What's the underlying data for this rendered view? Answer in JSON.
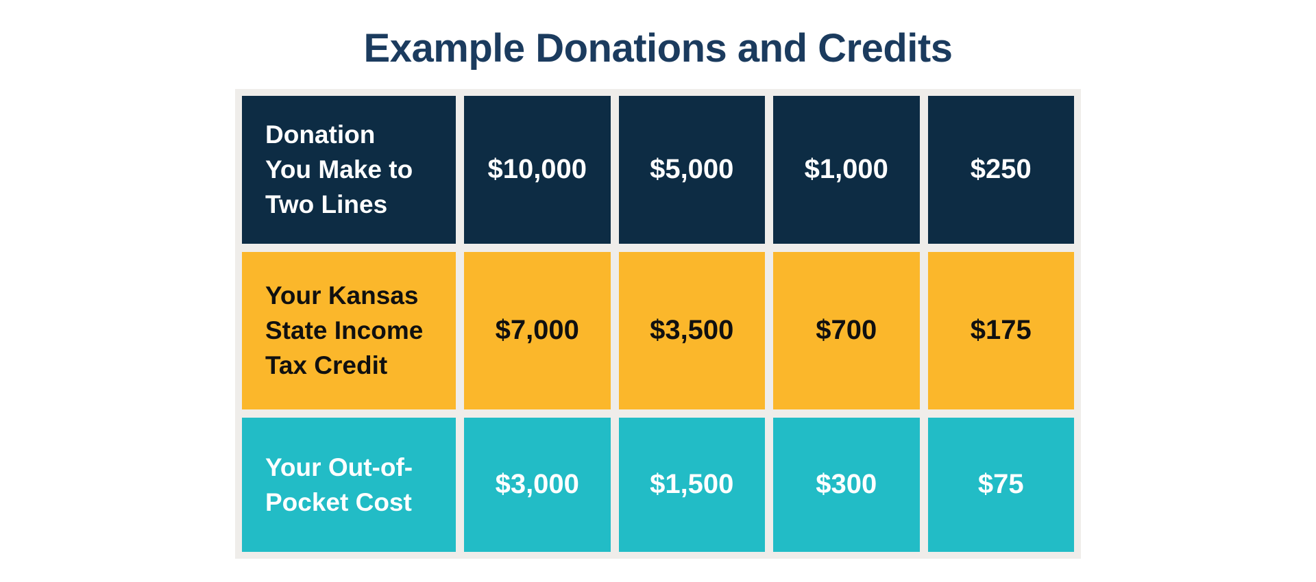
{
  "title": "Example Donations and Credits",
  "chart_data": {
    "type": "table",
    "title": "Example Donations and Credits",
    "rows": [
      {
        "label": "Donation\nYou Make to\nTwo Lines",
        "label_plain": "Donation You Make to Two Lines",
        "values": [
          "$10,000",
          "$5,000",
          "$1,000",
          "$250"
        ]
      },
      {
        "label": "Your Kansas\nState Income\nTax Credit",
        "label_plain": "Your Kansas State Income Tax Credit",
        "values": [
          "$7,000",
          "$3,500",
          "$700",
          "$175"
        ]
      },
      {
        "label": "Your Out-of-\nPocket Cost",
        "label_plain": "Your Out-of-Pocket Cost",
        "values": [
          "$3,000",
          "$1,500",
          "$300",
          "$75"
        ]
      }
    ]
  },
  "colors": {
    "title": "#1B3B5E",
    "navy": "#0D2C44",
    "orange": "#FBB72B",
    "teal": "#22BCC6",
    "frame": "#EFEDEA",
    "text_on_navy": "#FFFFFF",
    "text_on_orange": "#101010",
    "text_on_teal": "#FFFFFF",
    "page_background": "#FFFFFF"
  }
}
